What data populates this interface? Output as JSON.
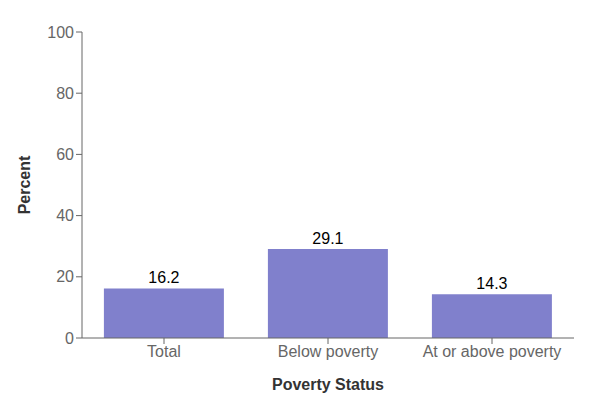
{
  "chart_data": {
    "type": "bar",
    "categories": [
      "Total",
      "Below poverty",
      "At or above poverty"
    ],
    "values": [
      16.2,
      29.1,
      14.3
    ],
    "color": "#8080cc",
    "xlabel": "Poverty Status",
    "ylabel": "Percent",
    "ylim": [
      0,
      100
    ],
    "yticks": [
      0,
      20,
      40,
      60,
      80,
      100
    ],
    "grid": false,
    "data_labels": true
  }
}
